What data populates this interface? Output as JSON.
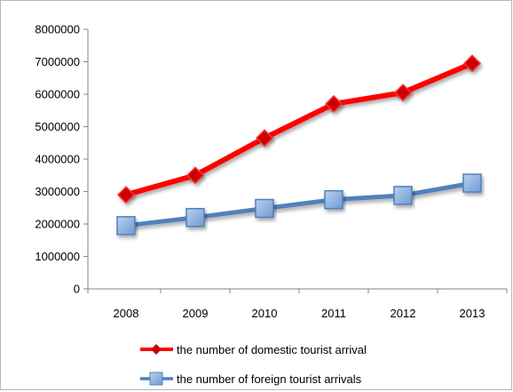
{
  "chart_data": {
    "type": "line",
    "title": "",
    "xlabel": "",
    "ylabel": "",
    "categories": [
      "2008",
      "2009",
      "2010",
      "2011",
      "2012",
      "2013"
    ],
    "ylim": [
      0,
      8000000
    ],
    "yticks": [
      "0",
      "1000000",
      "2000000",
      "3000000",
      "4000000",
      "5000000",
      "6000000",
      "7000000",
      "8000000"
    ],
    "grid": false,
    "legend_position": "bottom",
    "series": [
      {
        "name": "the number of domestic tourist arrival",
        "values": [
          2900000,
          3500000,
          4650000,
          5700000,
          6050000,
          6950000
        ],
        "color": "#ff0000",
        "marker": "diamond",
        "marker_color": "#cc0000"
      },
      {
        "name": "the number of foreign tourist arrivals",
        "values": [
          1950000,
          2200000,
          2480000,
          2750000,
          2880000,
          3260000
        ],
        "color": "#4f81bd",
        "marker": "square",
        "marker_color": "#8db3e2"
      }
    ]
  }
}
